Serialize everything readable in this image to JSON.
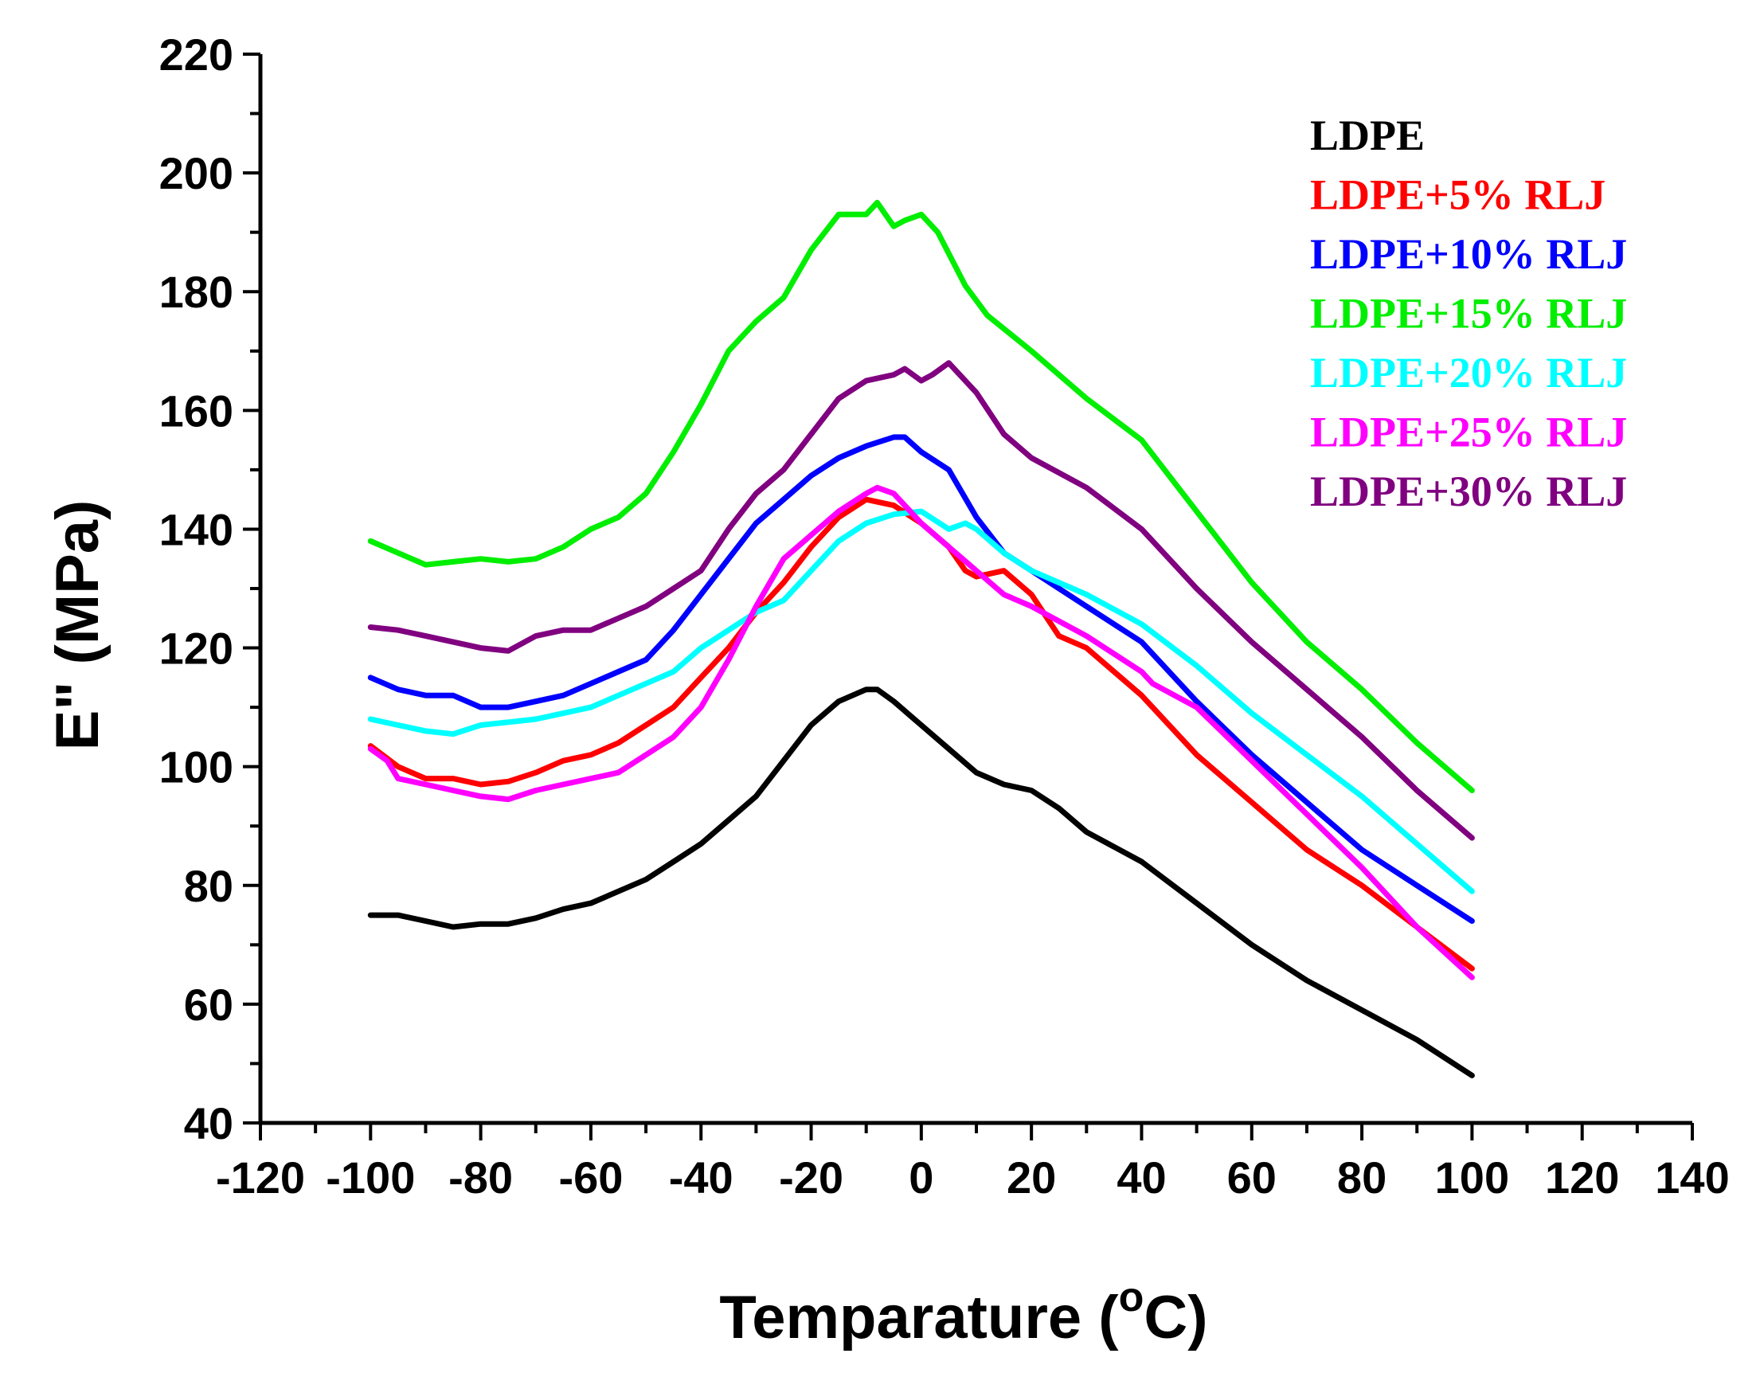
{
  "chart_data": {
    "type": "line",
    "title": "",
    "xlabel": "Temparature (",
    "xlabel_sup": "o",
    "xlabel_unit": "C)",
    "ylabel": "E\" (MPa)",
    "xlim": [
      -120,
      140
    ],
    "ylim": [
      40,
      220
    ],
    "xticks": [
      -120,
      -100,
      -80,
      -60,
      -40,
      -20,
      0,
      20,
      40,
      60,
      80,
      100,
      120,
      140
    ],
    "xtick_labels": [
      "-120",
      "-100",
      "-80",
      "-60",
      "-40",
      "-20",
      "0",
      "20",
      "40",
      "60",
      "80",
      "100",
      "120",
      "140"
    ],
    "yticks": [
      40,
      60,
      80,
      100,
      120,
      140,
      160,
      180,
      200,
      220
    ],
    "ytick_labels": [
      "40",
      "60",
      "80",
      "100",
      "120",
      "140",
      "160",
      "180",
      "200",
      "220"
    ],
    "legend_position": "top-right",
    "series": [
      {
        "name": "LDPE",
        "color": "#000000",
        "x": [
          -100,
          -95,
          -90,
          -85,
          -80,
          -75,
          -70,
          -65,
          -60,
          -55,
          -50,
          -45,
          -40,
          -35,
          -30,
          -25,
          -20,
          -15,
          -10,
          -8,
          -5,
          0,
          5,
          10,
          15,
          20,
          25,
          30,
          40,
          50,
          60,
          70,
          80,
          90,
          100
        ],
        "y": [
          75,
          75,
          74,
          73,
          73.5,
          73.5,
          74.5,
          76,
          77,
          79,
          81,
          84,
          87,
          91,
          95,
          101,
          107,
          111,
          113,
          113,
          111,
          107,
          103,
          99,
          97,
          96,
          93,
          89,
          84,
          77,
          70,
          64,
          59,
          54,
          48
        ]
      },
      {
        "name": "LDPE+5% RLJ",
        "color": "#ff0000",
        "x": [
          -100,
          -95,
          -90,
          -85,
          -80,
          -75,
          -70,
          -65,
          -60,
          -55,
          -50,
          -45,
          -40,
          -35,
          -30,
          -25,
          -20,
          -15,
          -10,
          -5,
          0,
          5,
          8,
          10,
          15,
          20,
          25,
          30,
          40,
          50,
          60,
          70,
          80,
          90,
          100
        ],
        "y": [
          103.5,
          100,
          98,
          98,
          97,
          97.5,
          99,
          101,
          102,
          104,
          107,
          110,
          115,
          120,
          126,
          131,
          137,
          142,
          145,
          144,
          141,
          137,
          133,
          132,
          133,
          129,
          122,
          120,
          112,
          102,
          94,
          86,
          80,
          73,
          66
        ]
      },
      {
        "name": "LDPE+10% RLJ",
        "color": "#0000ff",
        "x": [
          -100,
          -95,
          -90,
          -85,
          -80,
          -75,
          -70,
          -65,
          -60,
          -55,
          -50,
          -45,
          -40,
          -35,
          -30,
          -25,
          -20,
          -15,
          -10,
          -5,
          -3,
          0,
          5,
          10,
          15,
          20,
          30,
          40,
          50,
          60,
          70,
          80,
          90,
          100
        ],
        "y": [
          115,
          113,
          112,
          112,
          110,
          110,
          111,
          112,
          114,
          116,
          118,
          123,
          129,
          135,
          141,
          145,
          149,
          152,
          154,
          155.5,
          155.5,
          153,
          150,
          142,
          136,
          133,
          127,
          121,
          111,
          102,
          94,
          86,
          80,
          74
        ]
      },
      {
        "name": "LDPE+15% RLJ",
        "color": "#00ee00",
        "x": [
          -100,
          -95,
          -90,
          -85,
          -80,
          -75,
          -70,
          -65,
          -60,
          -55,
          -50,
          -45,
          -40,
          -35,
          -30,
          -25,
          -20,
          -15,
          -10,
          -8,
          -5,
          -3,
          0,
          3,
          8,
          12,
          20,
          30,
          40,
          50,
          60,
          70,
          80,
          90,
          100
        ],
        "y": [
          138,
          136,
          134,
          134.5,
          135,
          134.5,
          135,
          137,
          140,
          142,
          146,
          153,
          161,
          170,
          175,
          179,
          187,
          193,
          193,
          195,
          191,
          192,
          193,
          190,
          181,
          176,
          170,
          162,
          155,
          143,
          131,
          121,
          113,
          104,
          96
        ]
      },
      {
        "name": "LDPE+20% RLJ",
        "color": "#00ffff",
        "x": [
          -100,
          -95,
          -90,
          -85,
          -80,
          -75,
          -70,
          -65,
          -60,
          -55,
          -50,
          -45,
          -40,
          -35,
          -30,
          -25,
          -20,
          -15,
          -10,
          -5,
          0,
          5,
          8,
          10,
          15,
          20,
          30,
          40,
          50,
          60,
          70,
          80,
          90,
          100
        ],
        "y": [
          108,
          107,
          106,
          105.5,
          107,
          107.5,
          108,
          109,
          110,
          112,
          114,
          116,
          120,
          123,
          126,
          128,
          133,
          138,
          141,
          142.5,
          143,
          140,
          141,
          140,
          136,
          133,
          129,
          124,
          117,
          109,
          102,
          95,
          87,
          79
        ]
      },
      {
        "name": "LDPE+25% RLJ",
        "color": "#ff00ff",
        "x": [
          -100,
          -97,
          -95,
          -90,
          -85,
          -80,
          -75,
          -70,
          -65,
          -60,
          -55,
          -50,
          -45,
          -40,
          -35,
          -30,
          -25,
          -20,
          -15,
          -10,
          -8,
          -5,
          0,
          5,
          10,
          15,
          20,
          30,
          40,
          42,
          50,
          60,
          70,
          80,
          90,
          100
        ],
        "y": [
          103,
          101,
          98,
          97,
          96,
          95,
          94.5,
          96,
          97,
          98,
          99,
          102,
          105,
          110,
          118,
          127,
          135,
          139,
          143,
          146,
          147,
          146,
          141,
          137,
          133,
          129,
          127,
          122,
          116,
          114,
          110,
          101,
          92,
          83,
          73,
          64.5
        ]
      },
      {
        "name": "LDPE+30% RLJ",
        "color": "#800080",
        "x": [
          -100,
          -95,
          -90,
          -85,
          -80,
          -75,
          -70,
          -65,
          -60,
          -55,
          -50,
          -45,
          -40,
          -35,
          -30,
          -25,
          -20,
          -15,
          -10,
          -5,
          -3,
          0,
          2,
          5,
          10,
          15,
          20,
          30,
          40,
          50,
          60,
          70,
          80,
          90,
          100
        ],
        "y": [
          123.5,
          123,
          122,
          121,
          120,
          119.5,
          122,
          123,
          123,
          125,
          127,
          130,
          133,
          140,
          146,
          150,
          156,
          162,
          165,
          166,
          167,
          165,
          166,
          168,
          163,
          156,
          152,
          147,
          140,
          130,
          121,
          113,
          105,
          96,
          88
        ]
      }
    ]
  }
}
